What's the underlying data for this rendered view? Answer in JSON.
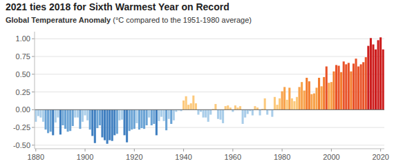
{
  "chart_data": {
    "type": "bar",
    "title": "2021 ties 2018 for Sixth Warmest Year on Record",
    "subtitle": "Global Temperature Anomaly (°C compared to the 1951-1980 average)",
    "x": [
      1880,
      1881,
      1882,
      1883,
      1884,
      1885,
      1886,
      1887,
      1888,
      1889,
      1890,
      1891,
      1892,
      1893,
      1894,
      1895,
      1896,
      1897,
      1898,
      1899,
      1900,
      1901,
      1902,
      1903,
      1904,
      1905,
      1906,
      1907,
      1908,
      1909,
      1910,
      1911,
      1912,
      1913,
      1914,
      1915,
      1916,
      1917,
      1918,
      1919,
      1920,
      1921,
      1922,
      1923,
      1924,
      1925,
      1926,
      1927,
      1928,
      1929,
      1930,
      1931,
      1932,
      1933,
      1934,
      1935,
      1936,
      1937,
      1938,
      1939,
      1940,
      1941,
      1942,
      1943,
      1944,
      1945,
      1946,
      1947,
      1948,
      1949,
      1950,
      1951,
      1952,
      1953,
      1954,
      1955,
      1956,
      1957,
      1958,
      1959,
      1960,
      1961,
      1962,
      1963,
      1964,
      1965,
      1966,
      1967,
      1968,
      1969,
      1970,
      1971,
      1972,
      1973,
      1974,
      1975,
      1976,
      1977,
      1978,
      1979,
      1980,
      1981,
      1982,
      1983,
      1984,
      1985,
      1986,
      1987,
      1988,
      1989,
      1990,
      1991,
      1992,
      1993,
      1994,
      1995,
      1996,
      1997,
      1998,
      1999,
      2000,
      2001,
      2002,
      2003,
      2004,
      2005,
      2006,
      2007,
      2008,
      2009,
      2010,
      2011,
      2012,
      2013,
      2014,
      2015,
      2016,
      2017,
      2018,
      2019,
      2020,
      2021
    ],
    "values": [
      -0.17,
      -0.09,
      -0.11,
      -0.17,
      -0.28,
      -0.33,
      -0.31,
      -0.36,
      -0.18,
      -0.11,
      -0.35,
      -0.22,
      -0.27,
      -0.31,
      -0.3,
      -0.23,
      -0.11,
      -0.11,
      -0.27,
      -0.17,
      -0.08,
      -0.15,
      -0.28,
      -0.37,
      -0.47,
      -0.26,
      -0.22,
      -0.39,
      -0.43,
      -0.48,
      -0.43,
      -0.44,
      -0.36,
      -0.34,
      -0.15,
      -0.14,
      -0.36,
      -0.46,
      -0.3,
      -0.28,
      -0.27,
      -0.19,
      -0.28,
      -0.26,
      -0.27,
      -0.22,
      -0.11,
      -0.22,
      -0.2,
      -0.36,
      -0.16,
      -0.1,
      -0.16,
      -0.29,
      -0.13,
      -0.2,
      -0.15,
      -0.03,
      -0.01,
      -0.02,
      0.13,
      0.19,
      0.07,
      0.09,
      0.2,
      0.09,
      -0.07,
      -0.03,
      -0.11,
      -0.11,
      -0.17,
      -0.07,
      0.01,
      0.08,
      -0.13,
      -0.14,
      -0.19,
      0.05,
      0.06,
      0.03,
      -0.03,
      0.06,
      0.03,
      0.05,
      -0.2,
      -0.11,
      -0.06,
      -0.02,
      -0.08,
      0.05,
      0.03,
      -0.08,
      0.01,
      0.16,
      -0.07,
      -0.01,
      -0.1,
      0.18,
      0.07,
      0.16,
      0.26,
      0.32,
      0.14,
      0.31,
      0.16,
      0.12,
      0.18,
      0.32,
      0.39,
      0.27,
      0.45,
      0.4,
      0.22,
      0.23,
      0.31,
      0.45,
      0.33,
      0.46,
      0.61,
      0.38,
      0.39,
      0.54,
      0.63,
      0.62,
      0.53,
      0.68,
      0.64,
      0.66,
      0.54,
      0.65,
      0.72,
      0.61,
      0.64,
      0.67,
      0.74,
      0.9,
      1.01,
      0.92,
      0.85,
      0.98,
      1.02,
      0.85
    ],
    "colors": [
      "#a9cde9",
      "#a9cde9",
      "#a9cde9",
      "#a9cde9",
      "#6aa3d5",
      "#6aa3d5",
      "#6aa3d5",
      "#3f7fc0",
      "#a9cde9",
      "#a9cde9",
      "#3f7fc0",
      "#6aa3d5",
      "#6aa3d5",
      "#6aa3d5",
      "#6aa3d5",
      "#6aa3d5",
      "#a9cde9",
      "#a9cde9",
      "#6aa3d5",
      "#a9cde9",
      "#a9cde9",
      "#a9cde9",
      "#6aa3d5",
      "#3f7fc0",
      "#3f7fc0",
      "#6aa3d5",
      "#6aa3d5",
      "#3f7fc0",
      "#3f7fc0",
      "#3f7fc0",
      "#3f7fc0",
      "#3f7fc0",
      "#3f7fc0",
      "#6aa3d5",
      "#a9cde9",
      "#a9cde9",
      "#3f7fc0",
      "#3f7fc0",
      "#6aa3d5",
      "#6aa3d5",
      "#6aa3d5",
      "#a9cde9",
      "#6aa3d5",
      "#6aa3d5",
      "#6aa3d5",
      "#6aa3d5",
      "#a9cde9",
      "#6aa3d5",
      "#6aa3d5",
      "#3f7fc0",
      "#a9cde9",
      "#a9cde9",
      "#a9cde9",
      "#6aa3d5",
      "#a9cde9",
      "#6aa3d5",
      "#a9cde9",
      "#a9cde9",
      "#a9cde9",
      "#a9cde9",
      "#fcc97c",
      "#fcc97c",
      "#fcc97c",
      "#fcc97c",
      "#fcc97c",
      "#fcc97c",
      "#a9cde9",
      "#a9cde9",
      "#a9cde9",
      "#a9cde9",
      "#a9cde9",
      "#a9cde9",
      "#fcc97c",
      "#fcc97c",
      "#a9cde9",
      "#a9cde9",
      "#a9cde9",
      "#fcc97c",
      "#fcc97c",
      "#fcc97c",
      "#a9cde9",
      "#fcc97c",
      "#fcc97c",
      "#fcc97c",
      "#a9cde9",
      "#a9cde9",
      "#a9cde9",
      "#a9cde9",
      "#a9cde9",
      "#fcc97c",
      "#fcc97c",
      "#a9cde9",
      "#fcc97c",
      "#fcc97c",
      "#a9cde9",
      "#a9cde9",
      "#a9cde9",
      "#fcc97c",
      "#fcc97c",
      "#fcc97c",
      "#f8a24a",
      "#f8a24a",
      "#fcc97c",
      "#f8a24a",
      "#fcc97c",
      "#fcc97c",
      "#fcc97c",
      "#f8a24a",
      "#f8a24a",
      "#f8a24a",
      "#f37b2c",
      "#f37b2c",
      "#f8a24a",
      "#f8a24a",
      "#f8a24a",
      "#f37b2c",
      "#f8a24a",
      "#f37b2c",
      "#e85228",
      "#f8a24a",
      "#f8a24a",
      "#f37b2c",
      "#e85228",
      "#e85228",
      "#f37b2c",
      "#e85228",
      "#e85228",
      "#e85228",
      "#f37b2c",
      "#e85228",
      "#e85228",
      "#e85228",
      "#e85228",
      "#e85228",
      "#e85228",
      "#cc1c1c",
      "#cc1c1c",
      "#cc1c1c",
      "#cc1c1c",
      "#cc1c1c",
      "#cc1c1c",
      "#cc1c1c"
    ],
    "xlim": [
      1879.5,
      2021.5
    ],
    "xticks": [
      1880,
      1900,
      1920,
      1940,
      1960,
      1980,
      2000,
      2020
    ],
    "ylim": [
      -0.55,
      1.1
    ],
    "yticks": [
      {
        "value": -0.5,
        "label": "-0.50"
      },
      {
        "value": -0.25,
        "label": "-0.25"
      },
      {
        "value": 0,
        "label": "0.00"
      },
      {
        "value": 0.25,
        "label": "0.25"
      },
      {
        "value": 0.5,
        "label": "0.50"
      },
      {
        "value": 0.75,
        "label": "0.75"
      },
      {
        "value": 1,
        "label": "1.00"
      }
    ],
    "grid": true
  }
}
